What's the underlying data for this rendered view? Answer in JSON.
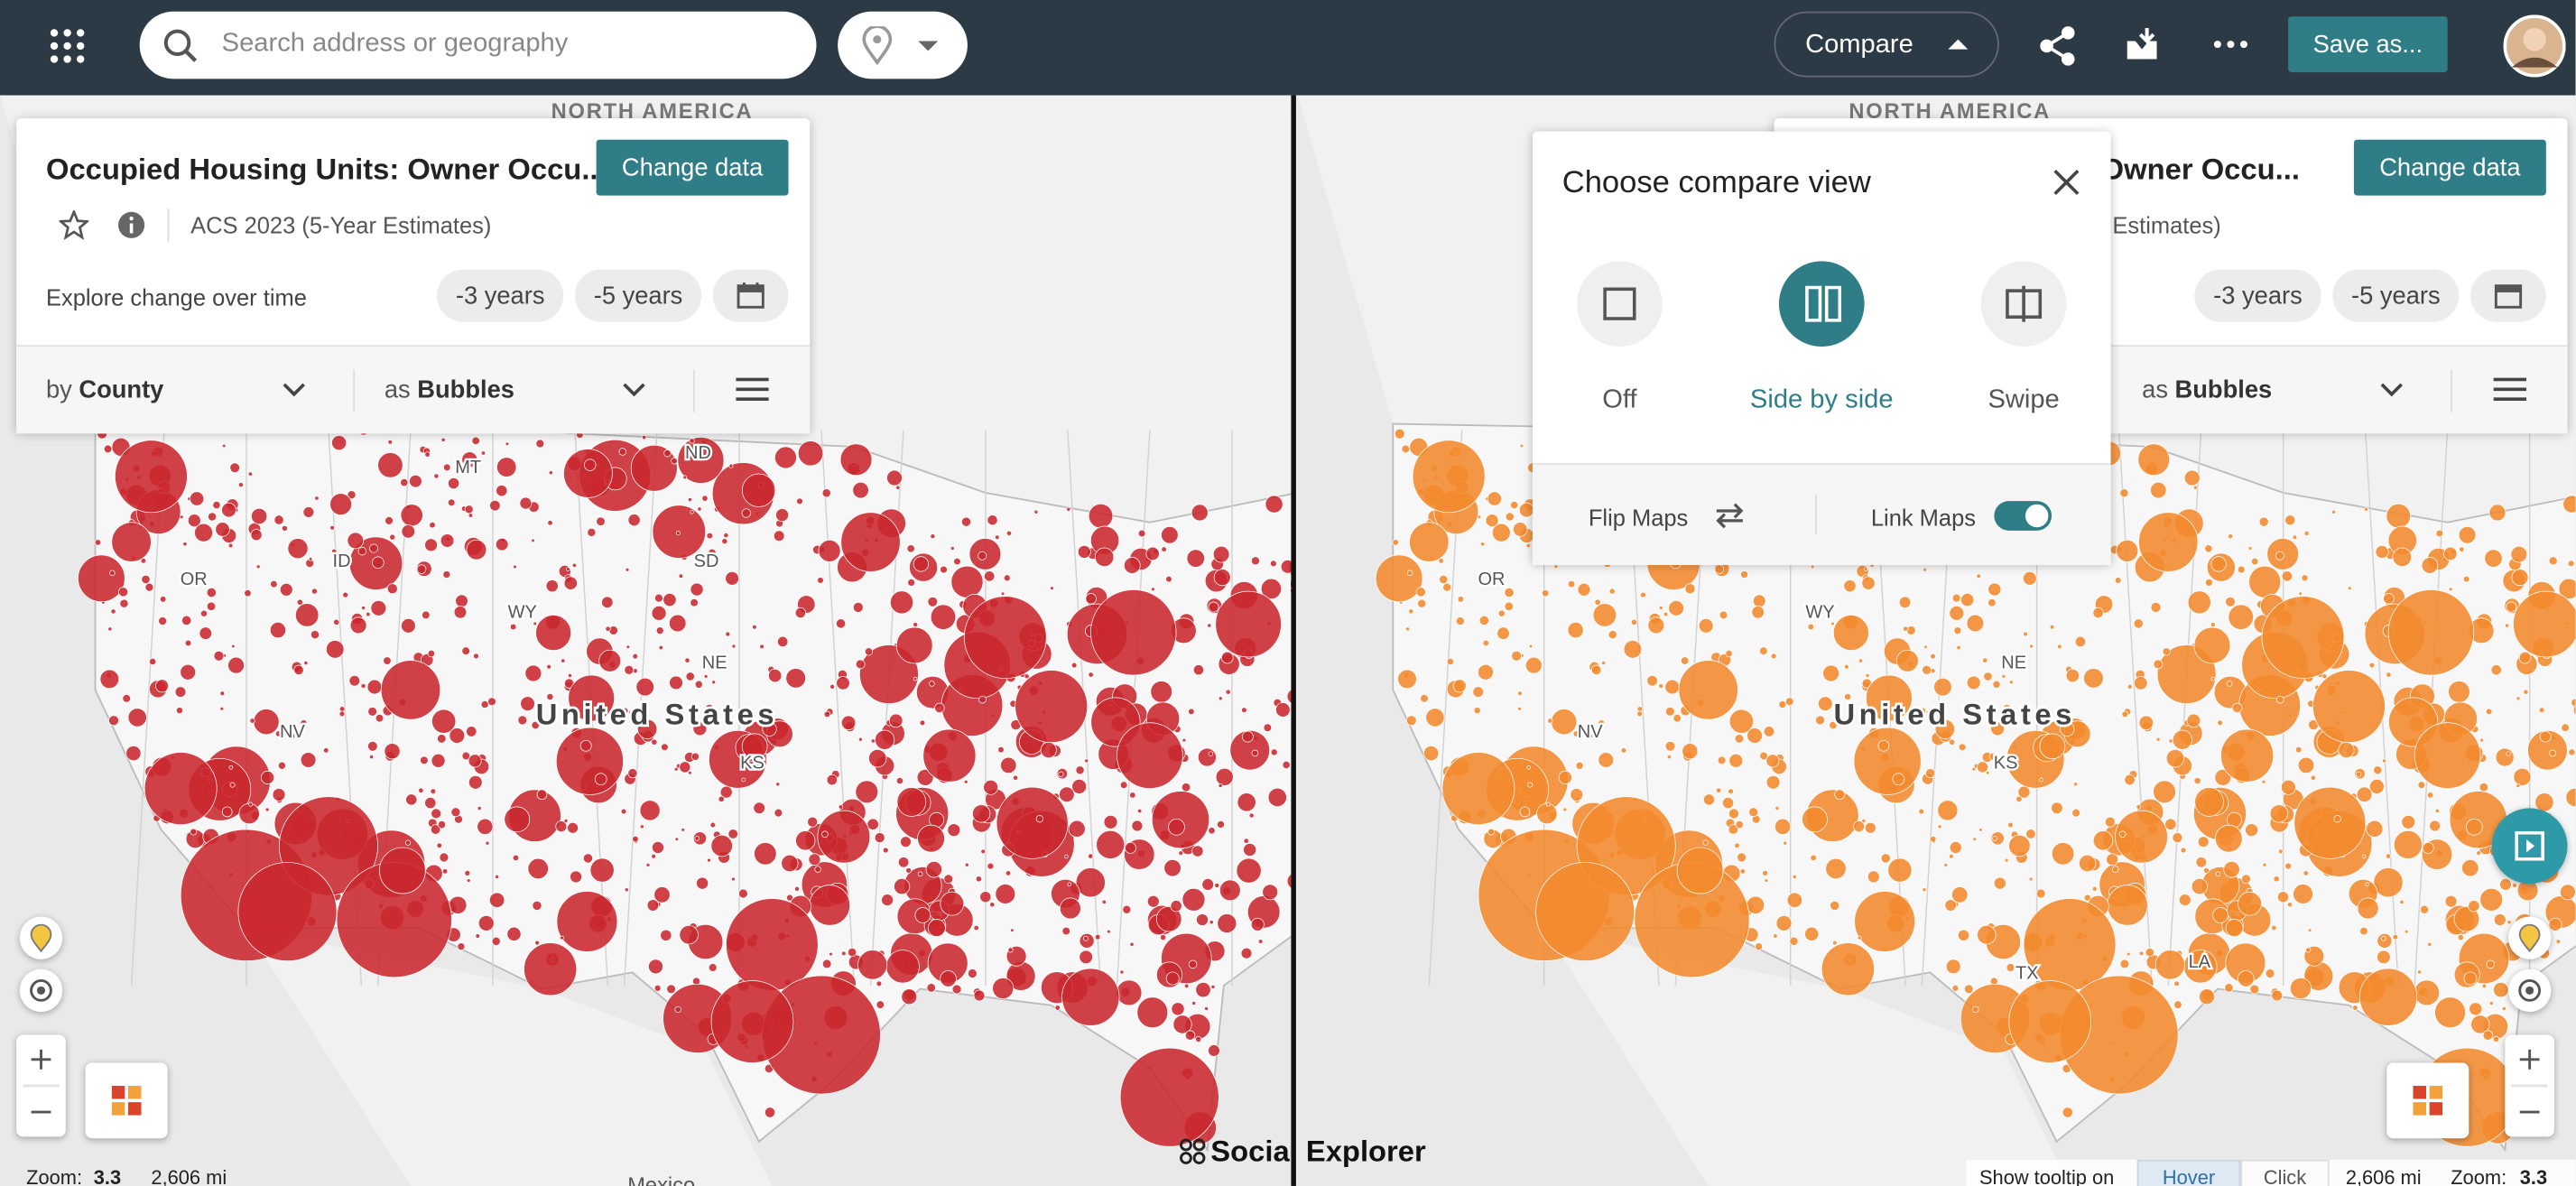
{
  "top_bar": {
    "search_placeholder": "Search address or geography",
    "compare": "Compare",
    "save": "Save as..."
  },
  "left_map": {
    "continent": "NORTH AMERICA",
    "country": "United States",
    "state_labels": [
      "MT",
      "ND",
      "SD",
      "ID",
      "OR",
      "WY",
      "NE",
      "NV",
      "KS"
    ],
    "panel": {
      "title": "Occupied Housing Units: Owner Occu...",
      "change_data": "Change data",
      "source": "ACS 2023 (5-Year Estimates)",
      "explore": "Explore change over time",
      "time_buttons": [
        "-3 years",
        "-5 years"
      ],
      "by_prefix": "by",
      "by_value": "County",
      "as_prefix": "as",
      "as_value": "Bubbles"
    },
    "footer": {
      "zoom_label": "Zoom:",
      "zoom_value": "3.3",
      "scale": "2,606 mi",
      "neighbor": "Mexico"
    }
  },
  "right_map": {
    "continent": "NORTH AMERICA",
    "country": "United States",
    "state_labels": [
      "OR",
      "WY",
      "NE",
      "NV",
      "KS",
      "TX",
      "LA"
    ],
    "panel": {
      "title": "s: Owner Occu...",
      "change_data": "Change data",
      "source": "Estimates)",
      "time_buttons": [
        "-3 years",
        "-5 years"
      ],
      "as_prefix": "as",
      "as_value": "Bubbles"
    },
    "footer": {
      "tooltip_label": "Show tooltip on",
      "tooltip_options": [
        "Hover",
        "Click"
      ],
      "scale": "2,606 mi",
      "zoom_label": "Zoom:",
      "zoom_value": "3.3"
    }
  },
  "compare_popup": {
    "title": "Choose compare view",
    "options": [
      "Off",
      "Side by side",
      "Swipe"
    ],
    "flip": "Flip Maps",
    "link": "Link Maps"
  },
  "logo": "Social Explorer"
}
